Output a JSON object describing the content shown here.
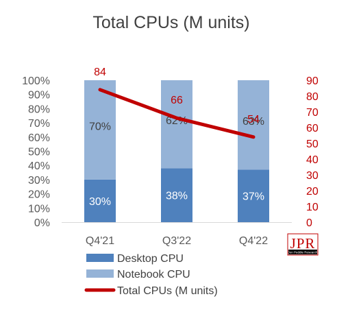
{
  "chart_data": {
    "type": "bar",
    "stacked": true,
    "percent_stacked": true,
    "title": "Total CPUs (M units)",
    "categories": [
      "Q4'21",
      "Q3'22",
      "Q4'22"
    ],
    "series": [
      {
        "name": "Desktop CPU",
        "kind": "bar",
        "axis": "left",
        "values": [
          30,
          38,
          37
        ],
        "labels": [
          "30%",
          "38%",
          "37%"
        ],
        "color": "#4f81bd",
        "label_color": "#ffffff"
      },
      {
        "name": "Notebook CPU",
        "kind": "bar",
        "axis": "left",
        "values": [
          70,
          62,
          63
        ],
        "labels": [
          "70%",
          "62%",
          "63%"
        ],
        "color": "#95b3d7",
        "label_color": "#404040"
      },
      {
        "name": "Total CPUs (M units)",
        "kind": "line",
        "axis": "right",
        "values": [
          84,
          66,
          54
        ],
        "labels": [
          "84",
          "66",
          "54"
        ],
        "color": "#c00000"
      }
    ],
    "y_left": {
      "lim": [
        0,
        100
      ],
      "ticks": [
        0,
        10,
        20,
        30,
        40,
        50,
        60,
        70,
        80,
        90,
        100
      ],
      "tick_labels": [
        "0%",
        "10%",
        "20%",
        "30%",
        "40%",
        "50%",
        "60%",
        "70%",
        "80%",
        "90%",
        "100%"
      ],
      "color": "#595959"
    },
    "y_right": {
      "lim": [
        0,
        90
      ],
      "ticks": [
        0,
        10,
        20,
        30,
        40,
        50,
        60,
        70,
        80,
        90
      ],
      "tick_labels": [
        "0",
        "10",
        "20",
        "30",
        "40",
        "50",
        "60",
        "70",
        "80",
        "90"
      ],
      "color": "#c00000"
    },
    "grid": false,
    "legend_position": "bottom-left"
  },
  "watermark": {
    "logo_text": "JPR",
    "logo_subtext": "Jon Peddie Research",
    "color": "#c00000"
  }
}
